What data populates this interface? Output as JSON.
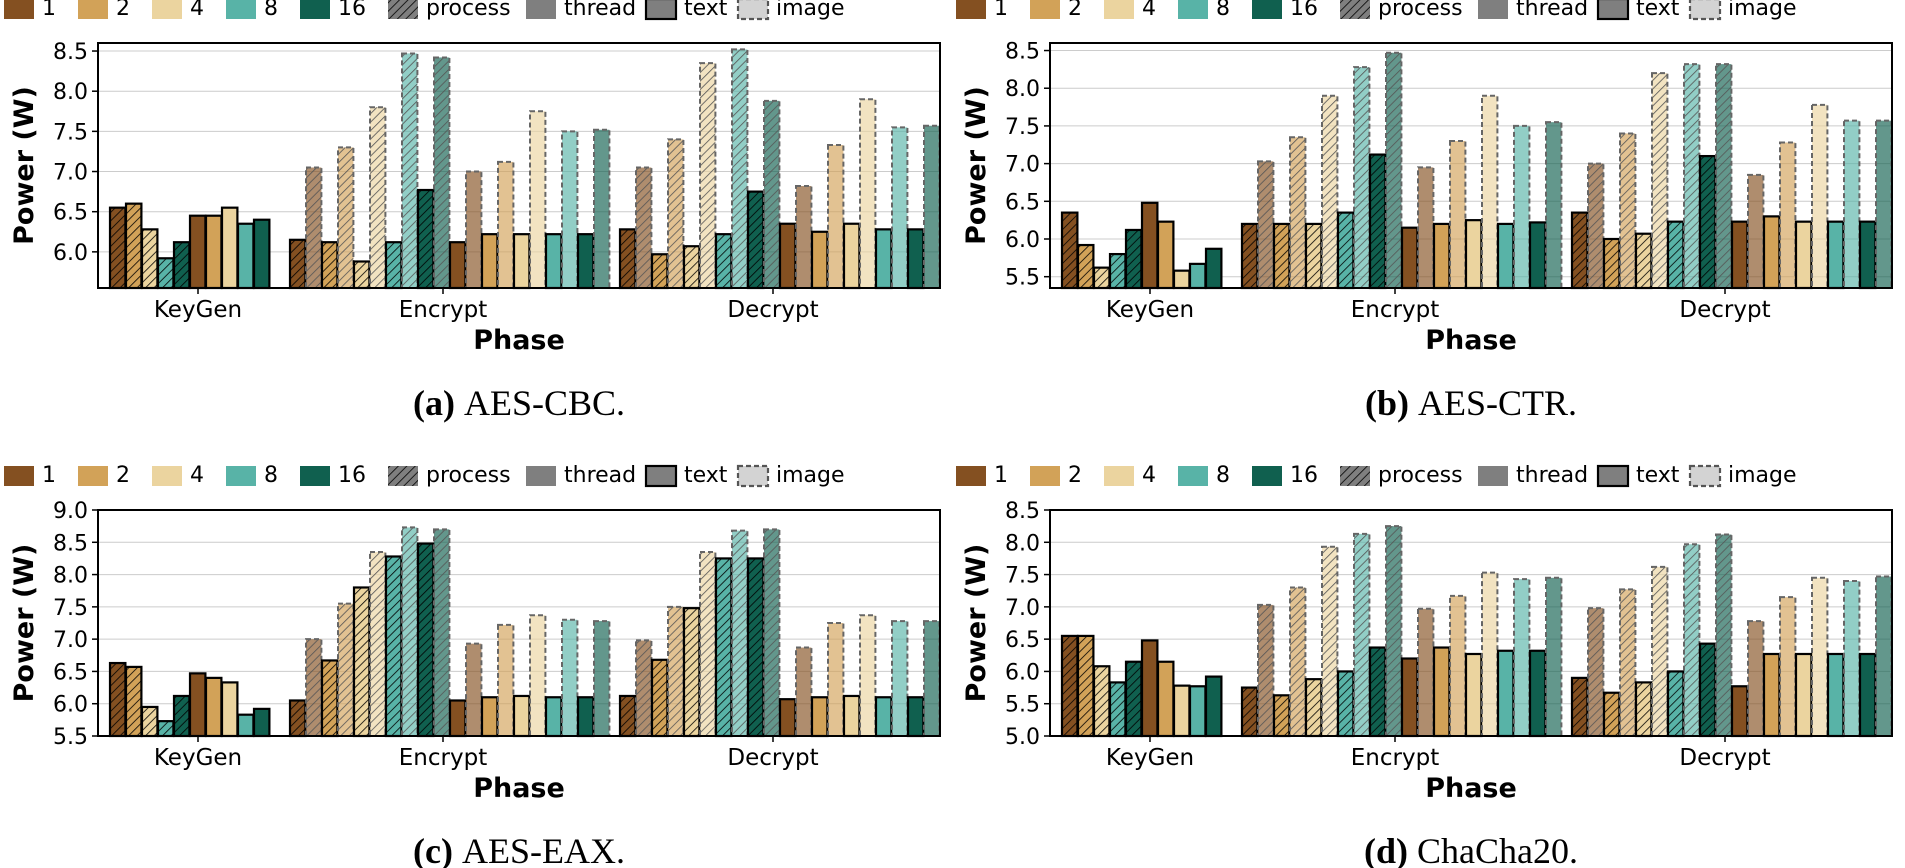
{
  "legend": {
    "thread_counts": [
      "1",
      "2",
      "4",
      "8",
      "16"
    ],
    "modes": [
      "process",
      "thread"
    ],
    "data_types": [
      "text",
      "image"
    ]
  },
  "colors": {
    "t1": "#845021",
    "t2": "#d2a258",
    "t4": "#ebd49f",
    "t8": "#58b3a7",
    "t16": "#10604f",
    "mode_gray": "#7f7f7f",
    "image_gray": "#d3d3d3"
  },
  "chart_data": [
    {
      "type": "bar",
      "panel": "(a)",
      "caption": "AES-CBC.",
      "xlabel": "Phase",
      "ylabel": "Power (W)",
      "ylim": [
        5.55,
        8.6
      ],
      "yticks": [
        6.0,
        6.5,
        7.0,
        7.5,
        8.0,
        8.5
      ],
      "categories": [
        "KeyGen",
        "Encrypt",
        "Decrypt"
      ],
      "series_order": "for each phase: text-process, text-thread, image-process, image-thread; each group lists threads 1,2,4,8,16",
      "values": {
        "KeyGen": {
          "process": [
            6.55,
            6.6,
            6.28,
            5.92,
            6.12
          ],
          "thread": [
            6.45,
            6.45,
            6.55,
            6.35,
            6.4
          ]
        },
        "Encrypt": {
          "text_process": [
            6.15,
            6.12,
            5.88,
            6.12,
            6.77
          ],
          "text_thread": [
            7.05,
            7.3,
            7.8,
            8.47,
            8.42
          ],
          "image_process": [
            6.12,
            6.22,
            6.22,
            6.22,
            6.22
          ],
          "image_thread": [
            7.0,
            7.12,
            7.75,
            7.5,
            7.52
          ]
        },
        "Decrypt": {
          "text_process": [
            6.28,
            5.97,
            6.07,
            6.22,
            6.75
          ],
          "text_thread": [
            7.05,
            7.4,
            8.35,
            8.52,
            7.88
          ],
          "image_process": [
            6.35,
            6.25,
            6.35,
            6.28,
            6.28
          ],
          "image_thread": [
            6.82,
            7.33,
            7.9,
            7.55,
            7.57
          ]
        }
      }
    },
    {
      "type": "bar",
      "panel": "(b)",
      "caption": "AES-CTR.",
      "xlabel": "Phase",
      "ylabel": "Power (W)",
      "ylim": [
        5.35,
        8.6
      ],
      "yticks": [
        5.5,
        6.0,
        6.5,
        7.0,
        7.5,
        8.0,
        8.5
      ],
      "categories": [
        "KeyGen",
        "Encrypt",
        "Decrypt"
      ],
      "values": {
        "KeyGen": {
          "process": [
            6.35,
            5.92,
            5.62,
            5.8,
            6.12
          ],
          "thread": [
            6.48,
            6.23,
            5.58,
            5.67,
            5.87
          ]
        },
        "Encrypt": {
          "text_process": [
            6.2,
            6.2,
            6.2,
            6.35,
            7.12
          ],
          "text_thread": [
            7.03,
            7.35,
            7.9,
            8.28,
            8.47
          ],
          "image_process": [
            6.15,
            6.2,
            6.25,
            6.2,
            6.22
          ],
          "image_thread": [
            6.95,
            7.3,
            7.9,
            7.5,
            7.55
          ]
        },
        "Decrypt": {
          "text_process": [
            6.35,
            6.0,
            6.07,
            6.23,
            7.1
          ],
          "text_thread": [
            7.0,
            7.4,
            8.2,
            8.32,
            8.32
          ],
          "image_process": [
            6.23,
            6.3,
            6.23,
            6.23,
            6.23
          ],
          "image_thread": [
            6.85,
            7.28,
            7.78,
            7.57,
            7.57
          ]
        }
      }
    },
    {
      "type": "bar",
      "panel": "(c)",
      "caption": "AES-EAX.",
      "xlabel": "Phase",
      "ylabel": "Power (W)",
      "ylim": [
        5.5,
        9.0
      ],
      "yticks": [
        5.5,
        6.0,
        6.5,
        7.0,
        7.5,
        8.0,
        8.5,
        9.0
      ],
      "categories": [
        "KeyGen",
        "Encrypt",
        "Decrypt"
      ],
      "values": {
        "KeyGen": {
          "process": [
            6.63,
            6.57,
            5.95,
            5.73,
            6.12
          ],
          "thread": [
            6.47,
            6.4,
            6.33,
            5.83,
            5.92
          ]
        },
        "Encrypt": {
          "text_process": [
            6.05,
            6.67,
            7.8,
            8.28,
            8.48
          ],
          "text_thread": [
            7.0,
            7.55,
            8.35,
            8.73,
            8.7
          ],
          "image_process": [
            6.05,
            6.1,
            6.12,
            6.1,
            6.1
          ],
          "image_thread": [
            6.93,
            7.22,
            7.37,
            7.3,
            7.28
          ]
        },
        "Decrypt": {
          "text_process": [
            6.12,
            6.68,
            7.48,
            8.25,
            8.25
          ],
          "text_thread": [
            6.98,
            7.5,
            8.35,
            8.68,
            8.7
          ],
          "image_process": [
            6.07,
            6.1,
            6.12,
            6.1,
            6.1
          ],
          "image_thread": [
            6.87,
            7.25,
            7.37,
            7.28,
            7.28
          ]
        }
      }
    },
    {
      "type": "bar",
      "panel": "(d)",
      "caption": "ChaCha20.",
      "xlabel": "Phase",
      "ylabel": "Power (W)",
      "ylim": [
        5.0,
        8.5
      ],
      "yticks": [
        5.0,
        5.5,
        6.0,
        6.5,
        7.0,
        7.5,
        8.0,
        8.5
      ],
      "categories": [
        "KeyGen",
        "Encrypt",
        "Decrypt"
      ],
      "values": {
        "KeyGen": {
          "process": [
            6.55,
            6.55,
            6.08,
            5.83,
            6.15
          ],
          "thread": [
            6.48,
            6.15,
            5.78,
            5.77,
            5.92
          ]
        },
        "Encrypt": {
          "text_process": [
            5.75,
            5.63,
            5.88,
            6.0,
            6.37
          ],
          "text_thread": [
            7.03,
            7.3,
            7.93,
            8.13,
            8.25
          ],
          "image_process": [
            6.2,
            6.37,
            6.27,
            6.32,
            6.32
          ],
          "image_thread": [
            6.97,
            7.17,
            7.53,
            7.43,
            7.45
          ]
        },
        "Decrypt": {
          "text_process": [
            5.9,
            5.67,
            5.83,
            6.0,
            6.43
          ],
          "text_thread": [
            6.98,
            7.27,
            7.62,
            7.97,
            8.12
          ],
          "image_process": [
            5.77,
            6.27,
            6.27,
            6.27,
            6.27
          ],
          "image_thread": [
            6.78,
            7.15,
            7.45,
            7.4,
            7.47
          ]
        }
      }
    }
  ]
}
